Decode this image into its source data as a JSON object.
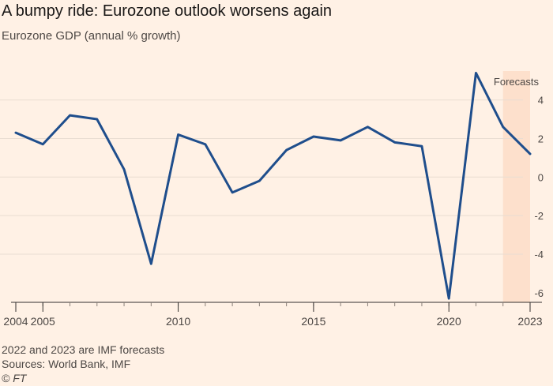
{
  "header": {
    "title": "A bumpy ride: Eurozone outlook worsens again",
    "subtitle": "Eurozone GDP (annual % growth)"
  },
  "footer": {
    "note": "2022 and 2023 are IMF forecasts",
    "sources": "Sources: World Bank, IMF",
    "copyright": "© FT"
  },
  "colors": {
    "background": "#fff1e5",
    "line": "#1f4e8c",
    "forecast_band": "#fde0cc",
    "grid": "#e9ddd2",
    "axis": "#33302e"
  },
  "chart_data": {
    "type": "line",
    "title": "A bumpy ride: Eurozone outlook worsens again",
    "ylabel": "Eurozone GDP (annual % growth)",
    "xlabel": "",
    "x": [
      2004,
      2005,
      2006,
      2007,
      2008,
      2009,
      2010,
      2011,
      2012,
      2013,
      2014,
      2015,
      2016,
      2017,
      2018,
      2019,
      2020,
      2021,
      2022,
      2023
    ],
    "series": [
      {
        "name": "Eurozone GDP growth",
        "values": [
          2.3,
          1.7,
          3.2,
          3.0,
          0.4,
          -4.5,
          2.2,
          1.7,
          -0.8,
          -0.2,
          1.4,
          2.1,
          1.9,
          2.6,
          1.8,
          1.6,
          -6.3,
          5.4,
          2.6,
          1.2
        ]
      }
    ],
    "xlim": [
      2004,
      2023
    ],
    "ylim": [
      -6.5,
      5.5
    ],
    "yticks": [
      -6,
      -4,
      -2,
      0,
      2,
      4
    ],
    "ytick_labels": [
      "-6",
      "-4",
      "-2",
      "0",
      "2",
      "4"
    ],
    "xtick_labels": [
      {
        "x": 2004,
        "label": "2004"
      },
      {
        "x": 2005,
        "label": "2005"
      },
      {
        "x": 2010,
        "label": "2010"
      },
      {
        "x": 2015,
        "label": "2015"
      },
      {
        "x": 2020,
        "label": "2020"
      },
      {
        "x": 2023,
        "label": "2023"
      }
    ],
    "minor_xticks": [
      2004,
      2005,
      2006,
      2007,
      2008,
      2009,
      2010,
      2011,
      2012,
      2013,
      2014,
      2015,
      2016,
      2017,
      2018,
      2019,
      2020,
      2021,
      2022,
      2023
    ],
    "forecast": {
      "start": 2022,
      "end": 2023,
      "label": "Forecasts"
    },
    "grid": true
  }
}
